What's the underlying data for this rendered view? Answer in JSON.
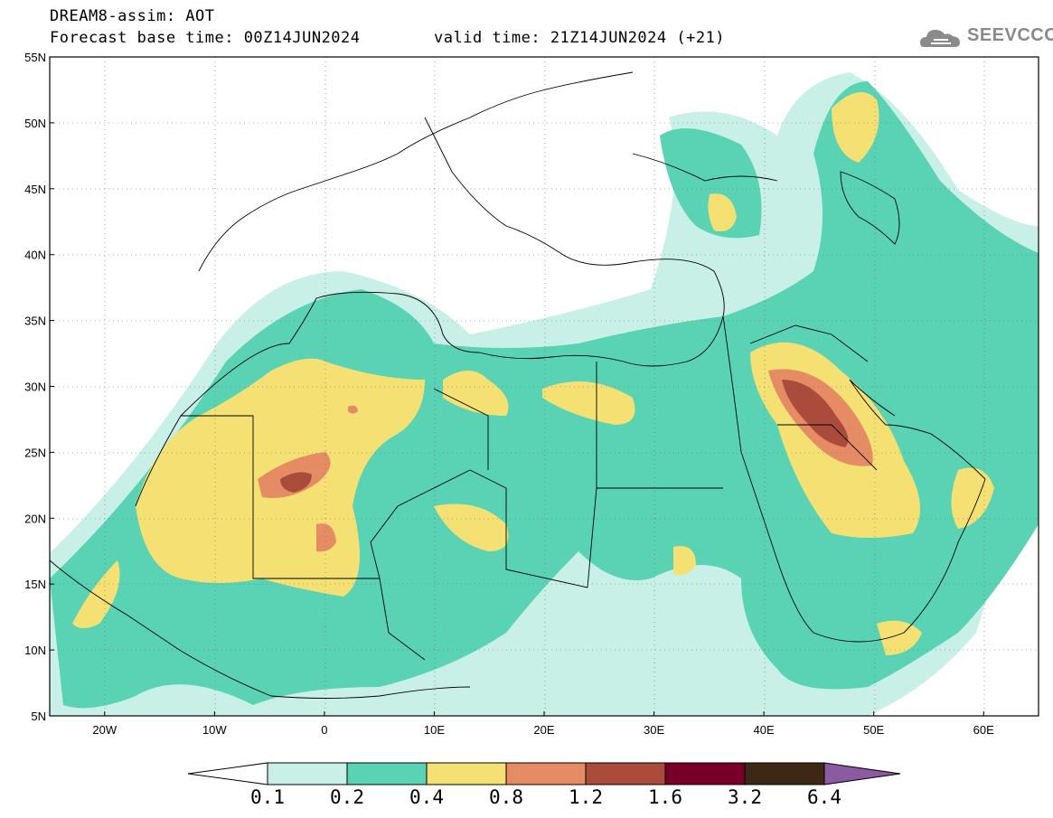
{
  "header": {
    "title_line1": "DREAM8-assim: AOT",
    "title_line2": "Forecast base time: 00Z14JUN2024",
    "valid_time": "valid time: 21Z14JUN2024 (+21)"
  },
  "logo": {
    "text": "SEEVCCC",
    "icon": "cloud-icon",
    "color": "#8a8a8a"
  },
  "map": {
    "lat_ticks": [
      "55N",
      "50N",
      "45N",
      "40N",
      "35N",
      "30N",
      "25N",
      "20N",
      "15N",
      "10N",
      "5N"
    ],
    "lon_ticks": [
      "20W",
      "10W",
      "0",
      "10E",
      "20E",
      "30E",
      "40E",
      "50E",
      "60E"
    ],
    "extent": {
      "lon_min": -25,
      "lon_max": 65,
      "lat_min": 5,
      "lat_max": 55
    }
  },
  "colorbar": {
    "labels": [
      "0.1",
      "0.2",
      "0.4",
      "0.8",
      "1.2",
      "1.6",
      "3.2",
      "6.4"
    ],
    "colors": [
      "#ffffff",
      "#c8f0e6",
      "#5ad2b4",
      "#f5e173",
      "#e68c64",
      "#aa4b3c",
      "#780028",
      "#3c2814",
      "#8c5aa0"
    ]
  }
}
